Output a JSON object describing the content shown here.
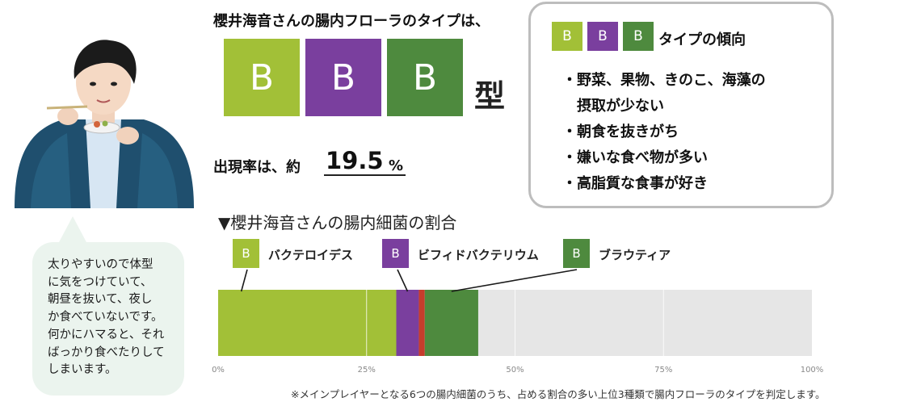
{
  "colors": {
    "bacteroides": "#a2c037",
    "bifido": "#7a3f9e",
    "prevotella": "#4e8a3e",
    "other_red": "#c63c2c",
    "track": "#e6e6e6",
    "bubble": "#ebf4ee",
    "card_border": "#bdbdbd"
  },
  "headline": "櫻井海音さんの腸内フローラのタイプは、",
  "type_letters": [
    "B",
    "B",
    "B"
  ],
  "type_suffix": "型",
  "rate": {
    "label": "出現率は、約",
    "value": "19.5",
    "unit": "%"
  },
  "card": {
    "badges": [
      "B",
      "B",
      "B"
    ],
    "title": "タイプの傾向",
    "items": [
      "・野菜、果物、きのこ、海藻の",
      "　摂取が少ない",
      "・朝食を抜きがち",
      "・嫌いな食べ物が多い",
      "・高脂質な食事が好き"
    ]
  },
  "bubble_text": "太りやすいので体型\nに気をつけていて、\n朝昼を抜いて、夜し\nか食べていないです。\n何かにハマると、それ\nばっかり食べたりして\nしまいます。",
  "section_title": "▼櫻井海音さんの腸内細菌の割合",
  "legend": [
    {
      "letter": "B",
      "name": "バクテロイデス",
      "color": "#a2c037"
    },
    {
      "letter": "B",
      "name": "ビフィドバクテリウム",
      "color": "#7a3f9e"
    },
    {
      "letter": "B",
      "name": "ブラウティア",
      "color": "#4e8a3e"
    }
  ],
  "chart_data": {
    "type": "bar",
    "orientation": "horizontal-stacked",
    "xlim": [
      0,
      100
    ],
    "x_ticks": [
      "0%",
      "25%",
      "50%",
      "75%",
      "100%"
    ],
    "segments": [
      {
        "name": "バクテロイデス",
        "value": 30,
        "color": "#a2c037"
      },
      {
        "name": "ビフィドバクテリウム",
        "value": 3.8,
        "color": "#7a3f9e"
      },
      {
        "name": "",
        "value": 1,
        "color": "#c63c2c"
      },
      {
        "name": "ブラウティア",
        "value": 9,
        "color": "#4e8a3e"
      }
    ]
  },
  "footnote": "※メインプレイヤーとなる6つの腸内細菌のうち、占める割合の多い上位3種類で腸内フローラのタイプを判定します。"
}
